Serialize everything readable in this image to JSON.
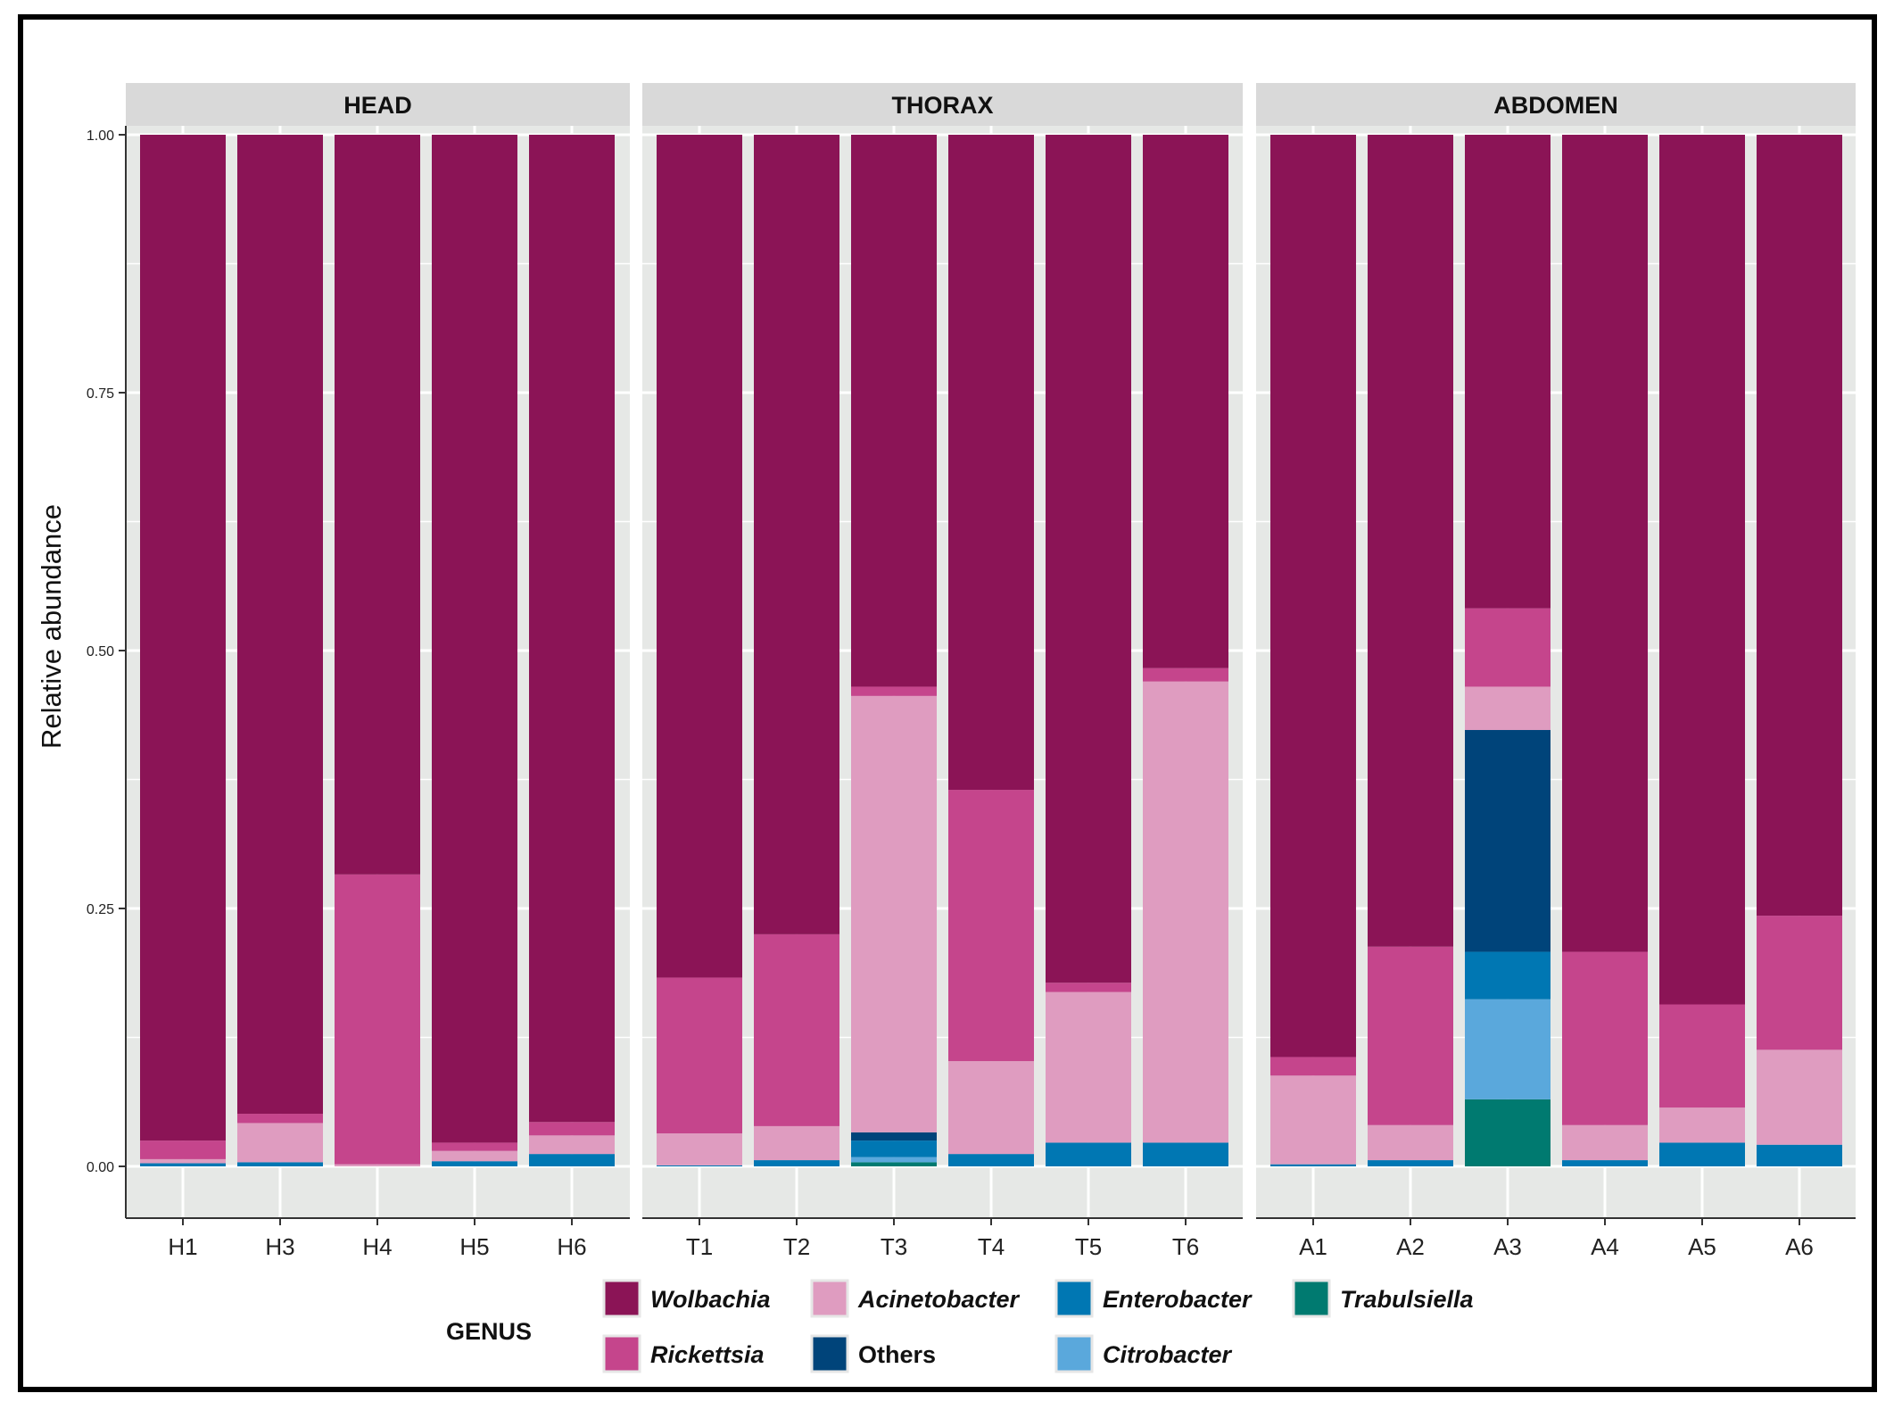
{
  "chart_data": {
    "type": "bar",
    "stacked": true,
    "ylabel": "Relative abundance",
    "xlabel": "",
    "ylim": [
      0,
      1
    ],
    "yticks": [
      "0.00",
      "0.25",
      "0.50",
      "0.75",
      "1.00"
    ],
    "grid": true,
    "legend_title": "GENUS",
    "legend_position": "bottom",
    "genera": [
      {
        "name": "Wolbachia",
        "color": "#8b1456",
        "italic": true
      },
      {
        "name": "Rickettsia",
        "color": "#c5458c",
        "italic": true
      },
      {
        "name": "Acinetobacter",
        "color": "#df9cc0",
        "italic": true
      },
      {
        "name": "Others",
        "color": "#00447a",
        "italic": false
      },
      {
        "name": "Enterobacter",
        "color": "#0077b3",
        "italic": true
      },
      {
        "name": "Citrobacter",
        "color": "#5aa8dc",
        "italic": true
      },
      {
        "name": "Trabulsiella",
        "color": "#007a70",
        "italic": true
      }
    ],
    "facets": [
      {
        "title": "HEAD",
        "samples": [
          {
            "label": "H1",
            "values": {
              "Trabulsiella": 0,
              "Citrobacter": 0,
              "Enterobacter": 0.003,
              "Others": 0,
              "Acinetobacter": 0.004,
              "Rickettsia": 0.018,
              "Wolbachia": 0.975
            }
          },
          {
            "label": "H3",
            "values": {
              "Trabulsiella": 0,
              "Citrobacter": 0,
              "Enterobacter": 0.004,
              "Others": 0,
              "Acinetobacter": 0.038,
              "Rickettsia": 0.009,
              "Wolbachia": 0.949
            }
          },
          {
            "label": "H4",
            "values": {
              "Trabulsiella": 0,
              "Citrobacter": 0,
              "Enterobacter": 0,
              "Others": 0,
              "Acinetobacter": 0.002,
              "Rickettsia": 0.281,
              "Wolbachia": 0.717
            }
          },
          {
            "label": "H5",
            "values": {
              "Trabulsiella": 0,
              "Citrobacter": 0,
              "Enterobacter": 0.005,
              "Others": 0,
              "Acinetobacter": 0.01,
              "Rickettsia": 0.008,
              "Wolbachia": 0.977
            }
          },
          {
            "label": "H6",
            "values": {
              "Trabulsiella": 0,
              "Citrobacter": 0,
              "Enterobacter": 0.012,
              "Others": 0,
              "Acinetobacter": 0.018,
              "Rickettsia": 0.013,
              "Wolbachia": 0.957
            }
          }
        ]
      },
      {
        "title": "THORAX",
        "samples": [
          {
            "label": "T1",
            "values": {
              "Trabulsiella": 0,
              "Citrobacter": 0,
              "Enterobacter": 0.001,
              "Others": 0,
              "Acinetobacter": 0.031,
              "Rickettsia": 0.151,
              "Wolbachia": 0.817
            }
          },
          {
            "label": "T2",
            "values": {
              "Trabulsiella": 0,
              "Citrobacter": 0,
              "Enterobacter": 0.006,
              "Others": 0,
              "Acinetobacter": 0.033,
              "Rickettsia": 0.186,
              "Wolbachia": 0.775
            }
          },
          {
            "label": "T3",
            "values": {
              "Trabulsiella": 0.004,
              "Citrobacter": 0.005,
              "Enterobacter": 0.016,
              "Others": 0.008,
              "Acinetobacter": 0.423,
              "Rickettsia": 0.009,
              "Wolbachia": 0.535
            }
          },
          {
            "label": "T4",
            "values": {
              "Trabulsiella": 0,
              "Citrobacter": 0,
              "Enterobacter": 0.012,
              "Others": 0,
              "Acinetobacter": 0.09,
              "Rickettsia": 0.263,
              "Wolbachia": 0.635
            }
          },
          {
            "label": "T5",
            "values": {
              "Trabulsiella": 0,
              "Citrobacter": 0,
              "Enterobacter": 0.023,
              "Others": 0,
              "Acinetobacter": 0.146,
              "Rickettsia": 0.009,
              "Wolbachia": 0.822
            }
          },
          {
            "label": "T6",
            "values": {
              "Trabulsiella": 0,
              "Citrobacter": 0,
              "Enterobacter": 0.023,
              "Others": 0,
              "Acinetobacter": 0.447,
              "Rickettsia": 0.013,
              "Wolbachia": 0.517
            }
          }
        ]
      },
      {
        "title": "ABDOMEN",
        "samples": [
          {
            "label": "A1",
            "values": {
              "Trabulsiella": 0,
              "Citrobacter": 0,
              "Enterobacter": 0.002,
              "Others": 0,
              "Acinetobacter": 0.086,
              "Rickettsia": 0.018,
              "Wolbachia": 0.894
            }
          },
          {
            "label": "A2",
            "values": {
              "Trabulsiella": 0,
              "Citrobacter": 0,
              "Enterobacter": 0.006,
              "Others": 0,
              "Acinetobacter": 0.034,
              "Rickettsia": 0.173,
              "Wolbachia": 0.787
            }
          },
          {
            "label": "A3",
            "values": {
              "Trabulsiella": 0.065,
              "Citrobacter": 0.097,
              "Enterobacter": 0.046,
              "Others": 0.215,
              "Acinetobacter": 0.042,
              "Rickettsia": 0.076,
              "Wolbachia": 0.459
            }
          },
          {
            "label": "A4",
            "values": {
              "Trabulsiella": 0,
              "Citrobacter": 0,
              "Enterobacter": 0.006,
              "Others": 0,
              "Acinetobacter": 0.034,
              "Rickettsia": 0.168,
              "Wolbachia": 0.792
            }
          },
          {
            "label": "A5",
            "values": {
              "Trabulsiella": 0,
              "Citrobacter": 0,
              "Enterobacter": 0.023,
              "Others": 0,
              "Acinetobacter": 0.034,
              "Rickettsia": 0.1,
              "Wolbachia": 0.843
            }
          },
          {
            "label": "A6",
            "values": {
              "Trabulsiella": 0,
              "Citrobacter": 0,
              "Enterobacter": 0.021,
              "Others": 0,
              "Acinetobacter": 0.092,
              "Rickettsia": 0.13,
              "Wolbachia": 0.757
            }
          }
        ]
      }
    ]
  }
}
